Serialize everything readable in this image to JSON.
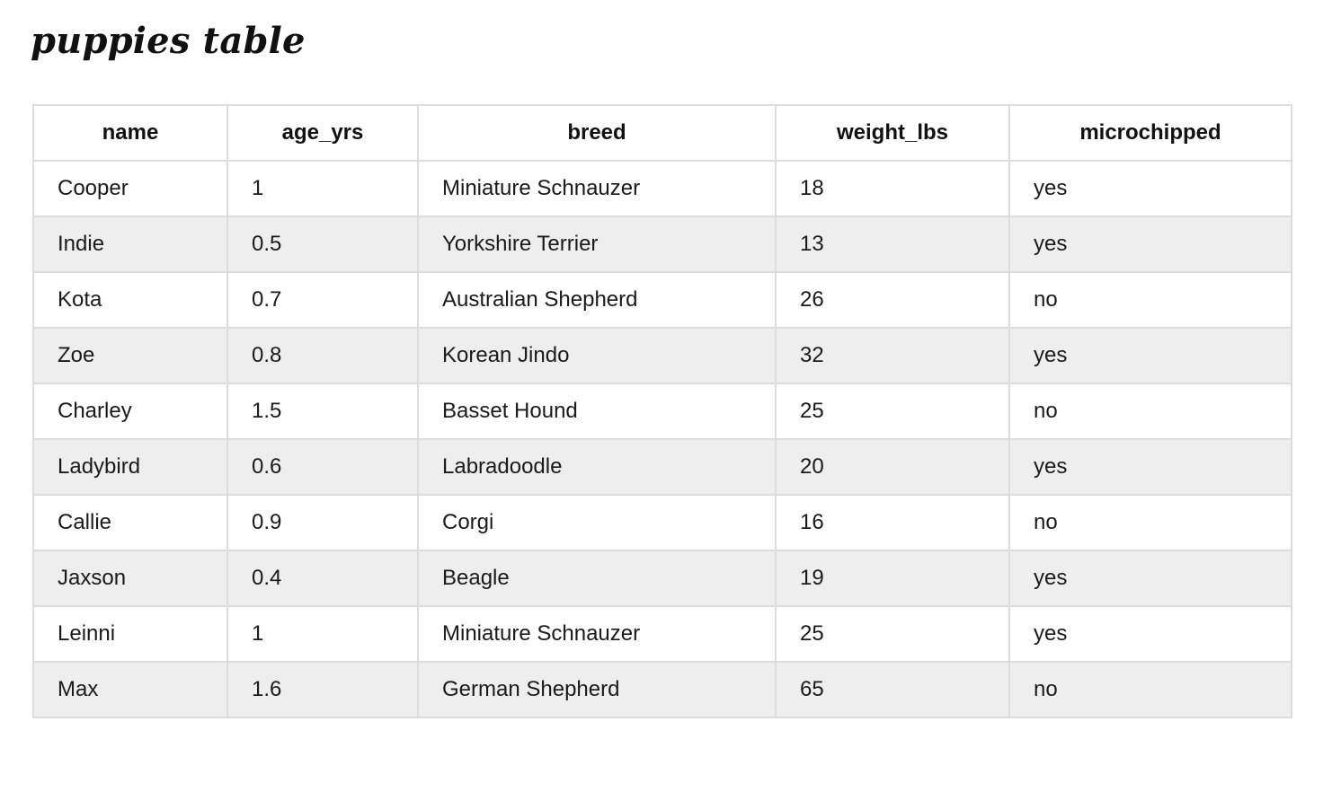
{
  "page": {
    "title": "puppies table"
  },
  "table": {
    "headers": [
      "name",
      "age_yrs",
      "breed",
      "weight_lbs",
      "microchipped"
    ],
    "rows": [
      [
        "Cooper",
        "1",
        "Miniature Schnauzer",
        "18",
        "yes"
      ],
      [
        "Indie",
        "0.5",
        "Yorkshire Terrier",
        "13",
        "yes"
      ],
      [
        "Kota",
        "0.7",
        "Australian Shepherd",
        "26",
        "no"
      ],
      [
        "Zoe",
        "0.8",
        "Korean Jindo",
        "32",
        "yes"
      ],
      [
        "Charley",
        "1.5",
        "Basset Hound",
        "25",
        "no"
      ],
      [
        "Ladybird",
        "0.6",
        "Labradoodle",
        "20",
        "yes"
      ],
      [
        "Callie",
        "0.9",
        "Corgi",
        "16",
        "no"
      ],
      [
        "Jaxson",
        "0.4",
        "Beagle",
        "19",
        "yes"
      ],
      [
        "Leinni",
        "1",
        "Miniature Schnauzer",
        "25",
        "yes"
      ],
      [
        "Max",
        "1.6",
        "German Shepherd",
        "65",
        "no"
      ]
    ]
  },
  "colors": {
    "stripe": "#eeeeee",
    "border": "#dddddd",
    "text": "#111111"
  }
}
